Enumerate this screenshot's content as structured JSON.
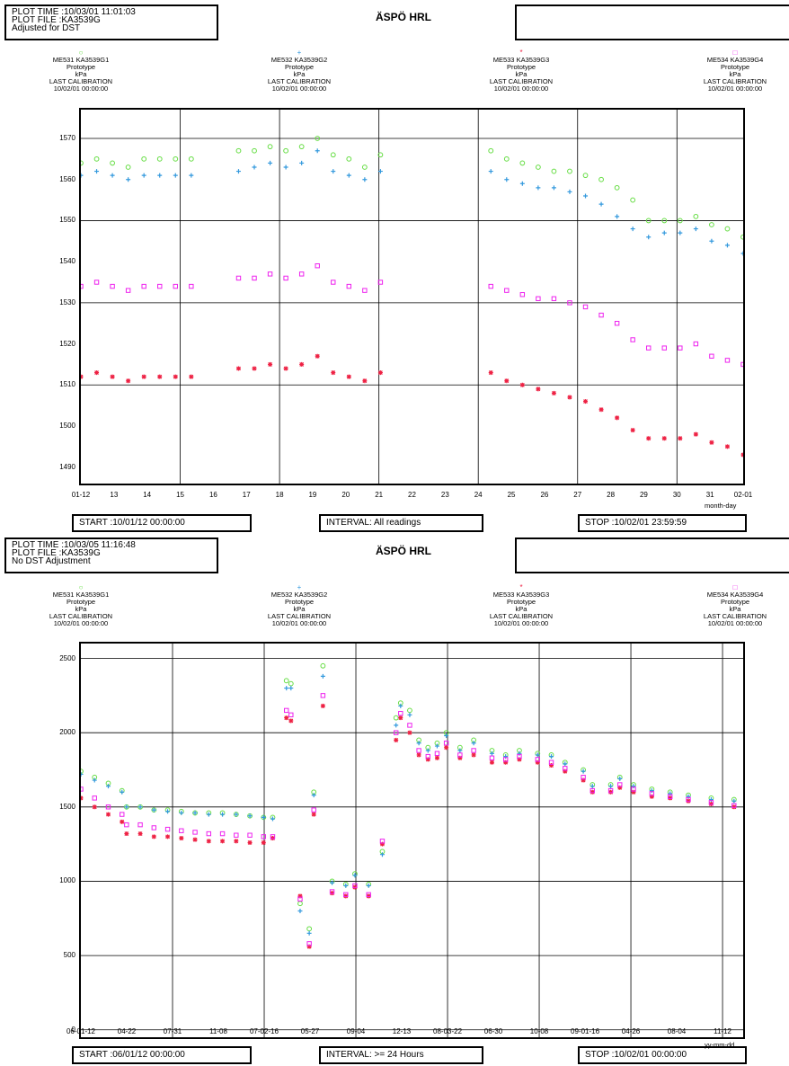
{
  "site_title": "ÄSPÖ HRL",
  "colors": {
    "g1": "#66dd44",
    "g2": "#3399dd",
    "g3": "#ee2244",
    "g4": "#ee22ee",
    "green_dark": "#22bb88"
  },
  "sensors": [
    {
      "id": "ME531 KA3539G1",
      "type": "Prototype",
      "unit": "kPa",
      "cal_label": "LAST CALIBRATION",
      "cal_date": "10/02/01 00:00:00",
      "marker": "○",
      "color": "#66dd44"
    },
    {
      "id": "ME532 KA3539G2",
      "type": "Prototype",
      "unit": "kPa",
      "cal_label": "LAST CALIBRATION",
      "cal_date": "10/02/01 00:00:00",
      "marker": "+",
      "color": "#3399dd"
    },
    {
      "id": "ME533 KA3539G3",
      "type": "Prototype",
      "unit": "kPa",
      "cal_label": "LAST CALIBRATION",
      "cal_date": "10/02/01 00:00:00",
      "marker": "*",
      "color": "#ee2244"
    },
    {
      "id": "ME534 KA3539G4",
      "type": "Prototype",
      "unit": "kPa",
      "cal_label": "LAST CALIBRATION",
      "cal_date": "10/02/01 00:00:00",
      "marker": "□",
      "color": "#ee22ee"
    }
  ],
  "panel1": {
    "header": {
      "plot_time": "PLOT TIME :10/03/01 11:01:03",
      "plot_file": "PLOT FILE :KA3539G",
      "note": "Adjusted for DST"
    },
    "footer": {
      "start": "START :10/01/12 00:00:00",
      "interval": "INTERVAL: All readings",
      "stop": "STOP :10/02/01 23:59:59"
    },
    "x_unit": "month-day"
  },
  "panel2": {
    "header": {
      "plot_time": "PLOT TIME :10/03/05 11:16:48",
      "plot_file": "PLOT FILE :KA3539G",
      "note": "No DST Adjustment"
    },
    "footer": {
      "start": "START :06/01/12 00:00:00",
      "interval": "INTERVAL: >= 24 Hours",
      "stop": "STOP :10/02/01 00:00:00"
    },
    "x_unit": "yy-mm-dd"
  },
  "chart_data": [
    {
      "type": "scatter",
      "title": "",
      "xlabel": "month-day",
      "ylabel": "kPa",
      "x_tick_labels": [
        "01-12",
        "13",
        "14",
        "15",
        "16",
        "17",
        "18",
        "19",
        "20",
        "21",
        "22",
        "23",
        "24",
        "25",
        "26",
        "27",
        "28",
        "29",
        "30",
        "31",
        "02-01"
      ],
      "y_ticks": [
        1490,
        1500,
        1510,
        1520,
        1530,
        1540,
        1550,
        1560,
        1570
      ],
      "ylim": [
        1486,
        1577
      ],
      "xlim": [
        0,
        21
      ],
      "grid": true,
      "x": [
        0.0,
        0.5,
        1.0,
        1.5,
        2.0,
        2.5,
        3.0,
        3.5,
        5.0,
        5.5,
        6.0,
        6.5,
        7.0,
        7.5,
        8.0,
        8.5,
        9.0,
        9.5,
        13.0,
        13.5,
        14.0,
        14.5,
        15.0,
        15.5,
        16.0,
        16.5,
        17.0,
        17.5,
        18.0,
        18.5,
        19.0,
        19.5,
        20.0,
        20.5,
        21.0
      ],
      "series": [
        {
          "name": "ME531 KA3539G1",
          "values": [
            1564,
            1565,
            1564,
            1563,
            1565,
            1565,
            1565,
            1565,
            1567,
            1567,
            1568,
            1567,
            1568,
            1570,
            1566,
            1565,
            1563,
            1566,
            1567,
            1565,
            1564,
            1563,
            1562,
            1562,
            1561,
            1560,
            1558,
            1555,
            1550,
            1550,
            1550,
            1551,
            1549,
            1548,
            1546
          ]
        },
        {
          "name": "ME532 KA3539G2",
          "values": [
            1561,
            1562,
            1561,
            1560,
            1561,
            1561,
            1561,
            1561,
            1562,
            1563,
            1564,
            1563,
            1564,
            1567,
            1562,
            1561,
            1560,
            1562,
            1562,
            1560,
            1559,
            1558,
            1558,
            1557,
            1556,
            1554,
            1551,
            1548,
            1546,
            1547,
            1547,
            1548,
            1545,
            1544,
            1542
          ]
        },
        {
          "name": "ME533 KA3539G3",
          "values": [
            1512,
            1513,
            1512,
            1511,
            1512,
            1512,
            1512,
            1512,
            1514,
            1514,
            1515,
            1514,
            1515,
            1517,
            1513,
            1512,
            1511,
            1513,
            1513,
            1511,
            1510,
            1509,
            1508,
            1507,
            1506,
            1504,
            1502,
            1499,
            1497,
            1497,
            1497,
            1498,
            1496,
            1495,
            1493
          ]
        },
        {
          "name": "ME534 KA3539G4",
          "values": [
            1534,
            1535,
            1534,
            1533,
            1534,
            1534,
            1534,
            1534,
            1536,
            1536,
            1537,
            1536,
            1537,
            1539,
            1535,
            1534,
            1533,
            1535,
            1534,
            1533,
            1532,
            1531,
            1531,
            1530,
            1529,
            1527,
            1525,
            1521,
            1519,
            1519,
            1519,
            1520,
            1517,
            1516,
            1515
          ]
        }
      ]
    },
    {
      "type": "scatter",
      "title": "",
      "xlabel": "yy-mm-dd",
      "ylabel": "kPa",
      "x_tick_labels": [
        "06-01-12",
        "04-22",
        "07-31",
        "11-08",
        "07-02-16",
        "05-27",
        "09-04",
        "12-13",
        "08-03-22",
        "06-30",
        "10-08",
        "09-01-16",
        "04-26",
        "08-04",
        "11-12"
      ],
      "y_ticks": [
        0,
        500,
        1000,
        1500,
        2000,
        2500
      ],
      "ylim": [
        -50,
        2600
      ],
      "xlim": [
        0,
        14.5
      ],
      "grid": true,
      "x": [
        0.0,
        0.3,
        0.6,
        0.9,
        1.0,
        1.3,
        1.6,
        1.9,
        2.2,
        2.5,
        2.8,
        3.1,
        3.4,
        3.7,
        4.0,
        4.2,
        4.5,
        4.6,
        4.8,
        5.0,
        5.1,
        5.3,
        5.5,
        5.8,
        6.0,
        6.3,
        6.6,
        6.9,
        7.0,
        7.2,
        7.4,
        7.6,
        7.8,
        8.0,
        8.3,
        8.6,
        9.0,
        9.3,
        9.6,
        10.0,
        10.3,
        10.6,
        11.0,
        11.2,
        11.6,
        11.8,
        12.1,
        12.5,
        12.9,
        13.3,
        13.8,
        14.3
      ],
      "series": [
        {
          "name": "ME531 KA3539G1",
          "values": [
            1740,
            1700,
            1660,
            1610,
            1500,
            1500,
            1480,
            1480,
            1470,
            1460,
            1460,
            1460,
            1450,
            1440,
            1430,
            1430,
            2350,
            2330,
            850,
            680,
            1600,
            2450,
            1000,
            980,
            1050,
            980,
            1200,
            2100,
            2200,
            2150,
            1950,
            1900,
            1930,
            2000,
            1900,
            1950,
            1880,
            1850,
            1880,
            1860,
            1850,
            1800,
            1750,
            1650,
            1650,
            1700,
            1650,
            1620,
            1600,
            1580,
            1560,
            1550
          ]
        },
        {
          "name": "ME532 KA3539G2",
          "values": [
            1720,
            1680,
            1640,
            1600,
            1500,
            1500,
            1480,
            1470,
            1460,
            1460,
            1450,
            1450,
            1450,
            1440,
            1430,
            1420,
            2300,
            2300,
            800,
            650,
            1580,
            2380,
            990,
            970,
            1040,
            970,
            1180,
            2050,
            2180,
            2120,
            1930,
            1880,
            1910,
            1980,
            1880,
            1930,
            1860,
            1840,
            1860,
            1850,
            1840,
            1790,
            1740,
            1640,
            1640,
            1690,
            1640,
            1610,
            1590,
            1570,
            1550,
            1540
          ]
        },
        {
          "name": "ME533 KA3539G3",
          "values": [
            1560,
            1500,
            1450,
            1400,
            1320,
            1320,
            1300,
            1300,
            1290,
            1280,
            1270,
            1270,
            1270,
            1260,
            1260,
            1290,
            2100,
            2080,
            900,
            560,
            1450,
            2180,
            920,
            900,
            960,
            900,
            1250,
            1950,
            2100,
            2000,
            1850,
            1820,
            1830,
            1900,
            1830,
            1850,
            1800,
            1800,
            1820,
            1800,
            1780,
            1740,
            1680,
            1600,
            1600,
            1630,
            1600,
            1570,
            1560,
            1540,
            1520,
            1500
          ]
        },
        {
          "name": "ME534 KA3539G4",
          "values": [
            1620,
            1560,
            1500,
            1450,
            1380,
            1380,
            1360,
            1350,
            1340,
            1330,
            1320,
            1320,
            1310,
            1310,
            1300,
            1300,
            2150,
            2120,
            880,
            580,
            1480,
            2250,
            930,
            910,
            970,
            910,
            1270,
            2000,
            2130,
            2050,
            1880,
            1840,
            1860,
            1930,
            1850,
            1880,
            1830,
            1820,
            1840,
            1820,
            1800,
            1760,
            1700,
            1610,
            1610,
            1650,
            1620,
            1590,
            1570,
            1550,
            1530,
            1510
          ]
        }
      ]
    }
  ]
}
